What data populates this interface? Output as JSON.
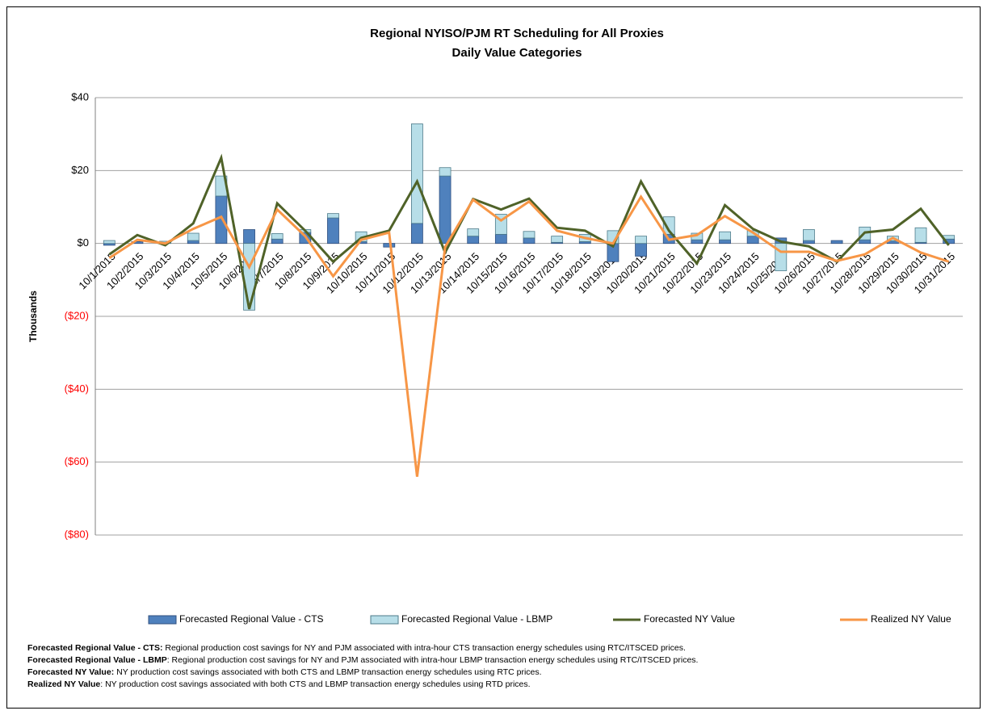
{
  "chart_data": {
    "type": "bar_line",
    "title": "Regional NYISO/PJM RT Scheduling for All Proxies",
    "subtitle": "Daily Value Categories",
    "y_label": "Thousands",
    "categories": [
      "10/1/2015",
      "10/2/2015",
      "10/3/2015",
      "10/4/2015",
      "10/5/2015",
      "10/6/2015",
      "10/7/2015",
      "10/8/2015",
      "10/9/2015",
      "10/10/2015",
      "10/11/2015",
      "10/12/2015",
      "10/13/2015",
      "10/14/2015",
      "10/15/2015",
      "10/16/2015",
      "10/17/2015",
      "10/18/2015",
      "10/19/2015",
      "10/20/2015",
      "10/21/2015",
      "10/22/2015",
      "10/23/2015",
      "10/24/2015",
      "10/25/2015",
      "10/26/2015",
      "10/27/2015",
      "10/28/2015",
      "10/29/2015",
      "10/30/2015",
      "10/31/2015"
    ],
    "series": [
      {
        "name": "Forecasted Regional Value - CTS",
        "kind": "bar",
        "color": "#4f81bd",
        "values": [
          -0.5,
          0.5,
          0,
          0.8,
          13,
          3.8,
          1.2,
          3,
          7,
          0.5,
          -1,
          5.5,
          18.5,
          2,
          2.5,
          1.5,
          0.3,
          0.5,
          -5,
          -3.5,
          2.5,
          1,
          1,
          2,
          1.5,
          0.8,
          0.8,
          1,
          0.7,
          0.3,
          1.2
        ]
      },
      {
        "name": "Forecasted Regional Value - LBMP",
        "kind": "bar",
        "color": "#b7dee8",
        "values": [
          0.8,
          0,
          0.6,
          2,
          5.5,
          -18.3,
          1.5,
          0.8,
          1.2,
          2.7,
          0,
          27.3,
          2.3,
          2,
          5.5,
          1.8,
          1.7,
          2,
          3.5,
          2,
          4.8,
          1.8,
          2.2,
          1.5,
          -7.5,
          3,
          0,
          3.5,
          1.3,
          4,
          1
        ]
      },
      {
        "name": "Forecasted NY Value",
        "kind": "line",
        "color": "#4f6228",
        "values": [
          -3,
          2.3,
          -0.5,
          5.5,
          23.5,
          -18,
          11,
          3.5,
          -5,
          1.5,
          3.5,
          17,
          -2.5,
          12.2,
          9.3,
          12.3,
          4.3,
          3.5,
          -0.8,
          17,
          3.5,
          -5.5,
          10.5,
          4,
          0.5,
          -0.8,
          -5,
          3,
          3.8,
          9.5,
          -0.5
        ]
      },
      {
        "name": "Realized NY Value",
        "kind": "line",
        "color": "#f79646",
        "values": [
          -4,
          1,
          0,
          4,
          7.3,
          -6.5,
          9.3,
          2,
          -9,
          1,
          3,
          -64,
          -1,
          12,
          6.3,
          11.5,
          3.5,
          1.5,
          0,
          12.8,
          1,
          2.3,
          7.5,
          3,
          -2.3,
          -2.3,
          -4.8,
          -3,
          1.5,
          -2.5,
          -5
        ]
      }
    ],
    "ylim": [
      -80,
      40
    ],
    "yticks": [
      {
        "value": -80,
        "label": "($80)"
      },
      {
        "value": -60,
        "label": "($60)"
      },
      {
        "value": -40,
        "label": "($40)"
      },
      {
        "value": -20,
        "label": "($20)"
      },
      {
        "value": 0,
        "label": "$0"
      },
      {
        "value": 20,
        "label": "$20"
      },
      {
        "value": 40,
        "label": "$40"
      }
    ],
    "negative_tick_color": "#ff0000",
    "grid": true,
    "legend": "bottom",
    "notes": [
      {
        "term": "Forecasted Regional Value - CTS:",
        "text": " Regional production cost savings for NY and PJM associated with intra-hour CTS transaction energy schedules using RTC/ITSCED prices."
      },
      {
        "term": "Forecasted Regional Value - LBMP",
        "text": ": Regional production cost savings for NY and PJM associated with intra-hour LBMP transaction energy schedules using RTC/ITSCED prices."
      },
      {
        "term": "Forecasted NY Value:",
        "text": " NY production cost savings associated with both CTS and LBMP transaction energy schedules using RTC prices."
      },
      {
        "term": "Realized NY Value",
        "text": ": NY production cost savings associated with both CTS and LBMP transaction energy schedules using RTD prices."
      }
    ]
  }
}
